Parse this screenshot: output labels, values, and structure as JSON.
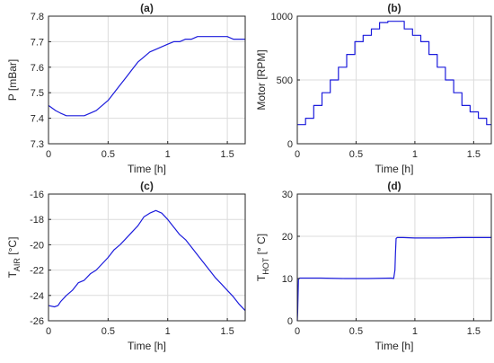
{
  "chart_data": [
    {
      "type": "line",
      "title": "(a)",
      "xlabel": "Time [h]",
      "ylabel": "P [mBar]",
      "ylabel_sub": "",
      "ylabel_post": "",
      "xlim": [
        0,
        1.65
      ],
      "ylim": [
        7.3,
        7.8
      ],
      "xticks": [
        0,
        0.5,
        1,
        1.5
      ],
      "xtick_labels": [
        "0",
        "0.5",
        "1",
        "1.5"
      ],
      "yticks": [
        7.3,
        7.4,
        7.5,
        7.6,
        7.7,
        7.8
      ],
      "ytick_labels": [
        "7.3",
        "7.4",
        "7.5",
        "7.6",
        "7.7",
        "7.8"
      ],
      "grid": true,
      "color": "#1c1cdc",
      "series": [
        {
          "x": [
            0,
            0.03,
            0.06,
            0.1,
            0.15,
            0.2,
            0.25,
            0.3,
            0.35,
            0.4,
            0.45,
            0.5,
            0.55,
            0.6,
            0.65,
            0.7,
            0.75,
            0.8,
            0.85,
            0.9,
            0.95,
            1.0,
            1.05,
            1.1,
            1.15,
            1.2,
            1.25,
            1.3,
            1.35,
            1.4,
            1.45,
            1.5,
            1.55,
            1.6,
            1.65
          ],
          "y": [
            7.45,
            7.44,
            7.43,
            7.42,
            7.41,
            7.41,
            7.41,
            7.41,
            7.42,
            7.43,
            7.45,
            7.47,
            7.5,
            7.53,
            7.56,
            7.59,
            7.62,
            7.64,
            7.66,
            7.67,
            7.68,
            7.69,
            7.7,
            7.7,
            7.71,
            7.71,
            7.72,
            7.72,
            7.72,
            7.72,
            7.72,
            7.72,
            7.71,
            7.71,
            7.71
          ]
        }
      ]
    },
    {
      "type": "line",
      "title": "(b)",
      "xlabel": "Time [h]",
      "ylabel": "Motor [RPM]",
      "ylabel_sub": "",
      "ylabel_post": "",
      "xlim": [
        0,
        1.65
      ],
      "ylim": [
        0,
        1000
      ],
      "xticks": [
        0,
        0.5,
        1,
        1.5
      ],
      "xtick_labels": [
        "0",
        "0.5",
        "1",
        "1.5"
      ],
      "yticks": [
        0,
        500,
        1000
      ],
      "ytick_labels": [
        "0",
        "500",
        "1000"
      ],
      "grid": true,
      "color": "#1c1cdc",
      "series": [
        {
          "x": [
            0,
            0.07,
            0.07,
            0.14,
            0.14,
            0.21,
            0.21,
            0.28,
            0.28,
            0.35,
            0.35,
            0.42,
            0.42,
            0.49,
            0.49,
            0.56,
            0.56,
            0.63,
            0.63,
            0.7,
            0.7,
            0.77,
            0.77,
            0.91,
            0.91,
            0.98,
            0.98,
            1.05,
            1.05,
            1.12,
            1.12,
            1.19,
            1.19,
            1.26,
            1.26,
            1.33,
            1.33,
            1.4,
            1.4,
            1.47,
            1.47,
            1.54,
            1.54,
            1.61,
            1.61,
            1.65
          ],
          "y": [
            150,
            150,
            200,
            200,
            300,
            300,
            400,
            400,
            500,
            500,
            600,
            600,
            700,
            700,
            800,
            800,
            850,
            850,
            900,
            900,
            950,
            950,
            960,
            960,
            900,
            900,
            850,
            850,
            800,
            800,
            700,
            700,
            600,
            600,
            500,
            500,
            400,
            400,
            300,
            300,
            250,
            250,
            200,
            200,
            150,
            150
          ]
        }
      ]
    },
    {
      "type": "line",
      "title": "(c)",
      "xlabel": "Time [h]",
      "ylabel": "T",
      "ylabel_sub": "AIR",
      "ylabel_post": " [°C]",
      "xlim": [
        0,
        1.65
      ],
      "ylim": [
        -26,
        -16
      ],
      "xticks": [
        0,
        0.5,
        1,
        1.5
      ],
      "xtick_labels": [
        "0",
        "0.5",
        "1",
        "1.5"
      ],
      "yticks": [
        -26,
        -24,
        -22,
        -20,
        -18,
        -16
      ],
      "ytick_labels": [
        "-26",
        "-24",
        "-22",
        "-20",
        "-18",
        "-16"
      ],
      "grid": true,
      "color": "#1c1cdc",
      "series": [
        {
          "x": [
            0,
            0.05,
            0.08,
            0.1,
            0.15,
            0.2,
            0.25,
            0.3,
            0.35,
            0.4,
            0.45,
            0.5,
            0.55,
            0.6,
            0.65,
            0.7,
            0.75,
            0.8,
            0.85,
            0.9,
            0.95,
            1.0,
            1.05,
            1.1,
            1.15,
            1.2,
            1.25,
            1.3,
            1.35,
            1.4,
            1.45,
            1.5,
            1.55,
            1.6,
            1.65
          ],
          "y": [
            -24.8,
            -24.9,
            -24.8,
            -24.5,
            -24.0,
            -23.6,
            -23.0,
            -22.8,
            -22.3,
            -22.0,
            -21.5,
            -21.0,
            -20.4,
            -20.0,
            -19.5,
            -19.0,
            -18.5,
            -17.8,
            -17.5,
            -17.3,
            -17.5,
            -18.0,
            -18.6,
            -19.2,
            -19.6,
            -20.2,
            -20.8,
            -21.4,
            -22.0,
            -22.6,
            -23.1,
            -23.6,
            -24.1,
            -24.7,
            -25.2
          ]
        }
      ]
    },
    {
      "type": "line",
      "title": "(d)",
      "xlabel": "Time [h]",
      "ylabel": "T",
      "ylabel_sub": "HOT",
      "ylabel_post": " [° C]",
      "xlim": [
        0,
        1.65
      ],
      "ylim": [
        0,
        30
      ],
      "xticks": [
        0,
        0.5,
        1,
        1.5
      ],
      "xtick_labels": [
        "0",
        "0.5",
        "1",
        "1.5"
      ],
      "yticks": [
        0,
        10,
        20,
        30
      ],
      "ytick_labels": [
        "0",
        "10",
        "20",
        "30"
      ],
      "grid": true,
      "color": "#1c1cdc",
      "series": [
        {
          "x": [
            0,
            0.003,
            0.01,
            0.02,
            0.2,
            0.4,
            0.6,
            0.8,
            0.82,
            0.83,
            0.835,
            0.84,
            0.85,
            0.9,
            1.0,
            1.2,
            1.4,
            1.6,
            1.65
          ],
          "y": [
            0,
            2,
            10,
            10.1,
            10.1,
            10.0,
            10.0,
            10.1,
            10.0,
            12,
            16,
            19.5,
            19.7,
            19.7,
            19.6,
            19.6,
            19.7,
            19.7,
            19.7
          ]
        }
      ]
    }
  ]
}
